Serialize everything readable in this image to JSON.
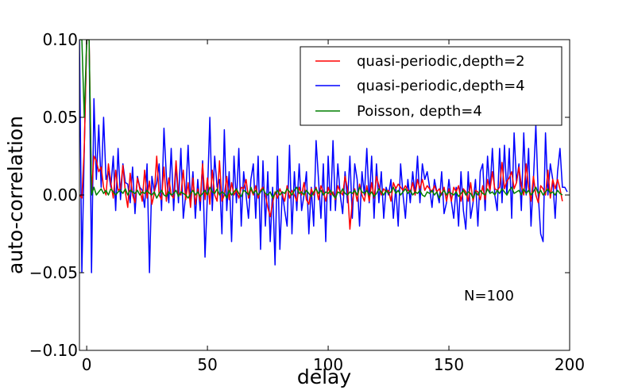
{
  "chart_data": {
    "type": "line",
    "title": "",
    "xlabel": "delay",
    "ylabel": "auto-correlation",
    "xlim": [
      -3,
      200
    ],
    "ylim": [
      -0.1,
      0.1
    ],
    "xticks": [
      0,
      50,
      100,
      150,
      200
    ],
    "yticks": [
      -0.1,
      -0.05,
      0.0,
      0.05,
      0.1
    ],
    "xtick_labels": [
      "0",
      "50",
      "100",
      "150",
      "200"
    ],
    "ytick_labels": [
      "−0.10",
      "−0.05",
      "0.00",
      "0.05",
      "0.10"
    ],
    "grid": false,
    "legend_position": "top-right",
    "annotation": "N=100",
    "series": [
      {
        "name": "quasi-periodic,depth=2",
        "color": "#ff0000",
        "x_start": -3,
        "values": [
          0.0,
          -0.002,
          0.03,
          0.1,
          0.1,
          0.002,
          0.025,
          0.022,
          0.015,
          0.018,
          0.005,
          0.0,
          0.02,
          0.008,
          -0.002,
          0.016,
          0.003,
          0.004,
          0.019,
          0.002,
          -0.008,
          0.014,
          0.0,
          -0.005,
          0.011,
          0.004,
          -0.004,
          0.016,
          -0.002,
          0.009,
          -0.006,
          0.001,
          0.025,
          0.0,
          -0.003,
          0.018,
          -0.004,
          0.011,
          0.0,
          -0.002,
          0.022,
          0.001,
          0.0,
          0.016,
          -0.003,
          0.008,
          -0.008,
          0.011,
          -0.006,
          0.004,
          -0.004,
          0.02,
          -0.003,
          0.011,
          -0.006,
          0.016,
          0.0,
          -0.004,
          0.022,
          -0.004,
          0.0,
          0.012,
          -0.003,
          0.008,
          0.0,
          0.003,
          -0.002,
          0.005,
          0.004,
          0.01,
          -0.002,
          0.004,
          0.0,
          0.006,
          -0.002,
          0.003,
          0.005,
          0.0,
          -0.008,
          -0.014,
          -0.005,
          0.002,
          -0.002,
          0.004,
          0.0,
          -0.004,
          0.006,
          -0.002,
          0.003,
          0.0,
          -0.004,
          0.005,
          0.0,
          0.008,
          -0.003,
          -0.006,
          0.004,
          0.0,
          0.005,
          -0.003,
          0.006,
          0.002,
          -0.004,
          0.005,
          0.0,
          0.002,
          -0.003,
          0.006,
          0.002,
          0.0,
          0.012,
          0.004,
          -0.022,
          -0.004,
          0.004,
          -0.004,
          0.007,
          0.0,
          -0.004,
          0.006,
          -0.004,
          0.008,
          -0.002,
          0.012,
          0.006,
          0.0,
          0.004,
          0.002,
          0.003,
          -0.004,
          0.008,
          0.004,
          0.007,
          0.005,
          0.003,
          0.006,
          0.003,
          0.002,
          0.008,
          0.0,
          0.01,
          0.004,
          0.01,
          0.003,
          0.006,
          0.004,
          0.002,
          0.006,
          0.002,
          0.004,
          0.0,
          0.005,
          -0.004,
          0.004,
          -0.004,
          0.005,
          0.002,
          0.006,
          -0.004,
          0.004,
          0.002,
          -0.004,
          0.008,
          -0.004,
          0.003,
          0.002,
          -0.003,
          0.006,
          -0.003,
          0.01,
          0.003,
          0.015,
          0.004,
          0.003,
          0.005,
          0.021,
          0.004,
          0.009,
          0.011,
          0.015,
          0.004,
          0.008,
          0.018,
          0.006,
          0.0,
          0.02,
          0.005,
          -0.004,
          0.012,
          0.0,
          -0.005,
          0.006,
          0.004,
          0.0,
          0.016,
          -0.002,
          0.01,
          0.004,
          0.01,
          0.004,
          -0.004
        ]
      },
      {
        "name": "quasi-periodic,depth=4",
        "color": "#0000ff",
        "x_start": -3,
        "values": [
          0.1,
          -0.05,
          0.03,
          0.1,
          0.1,
          -0.05,
          0.062,
          0.01,
          0.045,
          0.005,
          0.05,
          0.01,
          0.015,
          0.005,
          0.025,
          -0.01,
          0.03,
          -0.003,
          0.02,
          0.008,
          0.007,
          -0.005,
          0.018,
          -0.012,
          0.012,
          0.005,
          0.003,
          -0.008,
          0.02,
          -0.05,
          0.012,
          0.002,
          0.008,
          0.02,
          -0.01,
          0.043,
          0.012,
          -0.005,
          0.03,
          -0.01,
          0.02,
          -0.005,
          0.03,
          -0.015,
          0.0,
          0.032,
          -0.005,
          0.015,
          -0.015,
          0.01,
          -0.01,
          0.022,
          -0.04,
          0.0,
          0.05,
          -0.01,
          0.025,
          0.005,
          0.01,
          -0.025,
          0.042,
          -0.01,
          0.015,
          -0.03,
          0.025,
          -0.005,
          0.03,
          -0.02,
          0.015,
          0.0,
          -0.015,
          0.01,
          0.02,
          -0.015,
          0.025,
          -0.035,
          0.022,
          -0.02,
          0.015,
          -0.03,
          0.005,
          -0.045,
          0.025,
          -0.035,
          0.002,
          -0.01,
          -0.02,
          0.032,
          -0.025,
          0.015,
          -0.01,
          0.02,
          -0.01,
          0.0,
          0.015,
          -0.025,
          0.005,
          -0.02,
          0.035,
          0.01,
          -0.015,
          0.02,
          -0.03,
          0.025,
          -0.01,
          0.035,
          -0.01,
          0.02,
          0.0,
          -0.012,
          0.015,
          -0.005,
          0.025,
          -0.015,
          0.02,
          0.01,
          -0.02,
          0.015,
          0.0,
          0.03,
          -0.005,
          0.025,
          -0.015,
          0.02,
          -0.005,
          0.015,
          -0.015,
          0.005,
          0.0,
          0.01,
          -0.015,
          0.005,
          -0.02,
          0.02,
          0.0,
          -0.015,
          0.01,
          -0.005,
          0.015,
          0.0,
          0.025,
          -0.005,
          0.02,
          0.01,
          0.015,
          0.005,
          -0.008,
          0.01,
          0.002,
          -0.005,
          0.015,
          -0.012,
          -0.005,
          0.01,
          -0.004,
          -0.015,
          0.005,
          -0.02,
          0.015,
          -0.01,
          -0.022,
          0.015,
          -0.015,
          -0.005,
          0.01,
          -0.02,
          0.015,
          0.02,
          -0.01,
          0.025,
          0.002,
          0.03,
          0.0,
          -0.01,
          0.03,
          -0.005,
          0.032,
          0.0,
          0.03,
          -0.015,
          0.04,
          0.008,
          0.02,
          -0.01,
          0.04,
          0.0,
          0.03,
          -0.02,
          0.01,
          0.045,
          0.0,
          -0.025,
          -0.03,
          0.04,
          0.0,
          0.02,
          0.01,
          -0.015,
          0.015,
          0.03,
          0.005,
          0.005,
          0.002
        ]
      },
      {
        "name": "Poisson, depth=4",
        "color": "#007f00",
        "x_start": -3,
        "values": [
          0.1,
          0.1,
          0.05,
          0.1,
          0.1,
          0.0,
          0.005,
          0.0,
          0.002,
          0.004,
          0.001,
          0.003,
          0.0,
          0.004,
          0.002,
          0.0,
          0.002,
          0.003,
          0.001,
          0.004,
          0.0,
          0.003,
          0.002,
          0.001,
          0.003,
          0.0,
          0.002,
          0.001,
          0.003,
          0.001,
          0.0,
          0.002,
          -0.002,
          0.001,
          0.003,
          0.0,
          -0.001,
          0.002,
          0.0,
          0.001,
          0.003,
          -0.001,
          0.002,
          0.001,
          0.0,
          -0.002,
          0.001,
          0.003,
          0.0,
          0.002,
          -0.001,
          0.001,
          0.003,
          0.0,
          0.005,
          0.002,
          0.001,
          0.004,
          0.0,
          0.002,
          0.001,
          -0.002,
          0.003,
          0.0,
          0.002,
          0.004,
          0.001,
          -0.001,
          0.003,
          0.002,
          0.0,
          0.005,
          0.001,
          0.003,
          0.0,
          0.002,
          0.004,
          0.001,
          0.0,
          0.002,
          -0.002,
          0.001,
          0.003,
          0.0,
          0.002,
          0.001,
          0.004,
          0.002,
          0.0,
          0.003,
          0.005,
          0.001,
          0.002,
          0.0,
          0.003,
          0.001,
          -0.001,
          0.002,
          0.004,
          0.001,
          0.003,
          0.0,
          0.002,
          0.001,
          0.003,
          0.0,
          -0.002,
          0.002,
          0.001,
          0.004,
          0.001,
          0.0,
          0.002,
          0.001,
          0.003,
          0.0,
          0.005,
          0.002,
          0.001,
          0.003,
          0.0,
          0.002,
          -0.001,
          0.001,
          0.004,
          0.002,
          0.0,
          0.003,
          0.001,
          0.002,
          0.005,
          0.001,
          0.003,
          0.0,
          0.002,
          0.004,
          0.001,
          0.003,
          0.0,
          0.002,
          0.001,
          0.003,
          0.0,
          -0.001,
          0.002,
          0.001,
          0.003,
          0.0,
          0.002,
          -0.002,
          0.001,
          0.003,
          0.0,
          0.002,
          0.001,
          0.0,
          0.002,
          -0.001,
          0.001,
          0.003,
          0.0,
          0.002,
          0.001,
          -0.002,
          0.002,
          0.0,
          0.003,
          0.001,
          0.0,
          0.004,
          0.001,
          0.002,
          0.0,
          0.003,
          0.001,
          0.004,
          0.002,
          0.0,
          0.003,
          0.005,
          0.001,
          0.002,
          0.003,
          0.0,
          0.004,
          0.001,
          0.003,
          0.0,
          0.002,
          0.005,
          0.001,
          0.003,
          0.0,
          0.002,
          0.004,
          0.001,
          0.002,
          0.0,
          0.003,
          0.001,
          0.0
        ]
      }
    ]
  }
}
